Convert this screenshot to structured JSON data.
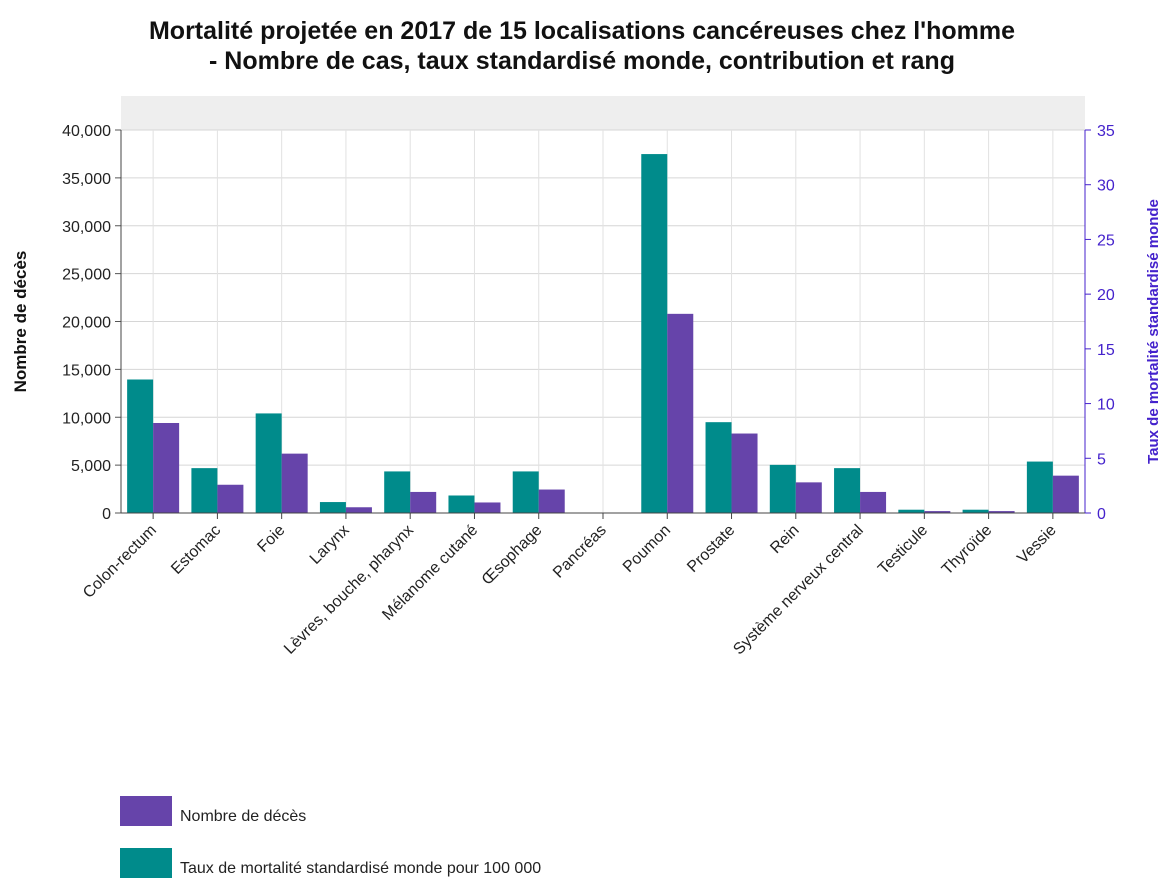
{
  "title_line1": "Mortalité projetée en 2017 de 15 localisations cancéreuses chez l'homme",
  "title_line2": "- Nombre de cas, taux standardisé monde, contribution et rang",
  "colors": {
    "deaths": "#6644AA",
    "rate": "#008B8B",
    "right_axis": "#4422CC"
  },
  "chart_data": {
    "type": "bar",
    "title": "Mortalité projetée en 2017 de 15 localisations cancéreuses chez l'homme - Nombre de cas, taux standardisé monde, contribution et rang",
    "categories": [
      "Colon-rectum",
      "Estomac",
      "Foie",
      "Larynx",
      "Lèvres, bouche, pharynx",
      "Mélanome cutané",
      "Œsophage",
      "Pancréas",
      "Poumon",
      "Prostate",
      "Rein",
      "Système nerveux central",
      "Testicule",
      "Thyroïde",
      "Vessie"
    ],
    "series": [
      {
        "name": "Taux de mortalité standardisé monde pour 100 000",
        "axis": "right",
        "values": [
          12.2,
          4.1,
          9.1,
          1.0,
          3.8,
          1.6,
          3.8,
          0,
          32.8,
          8.3,
          4.4,
          4.1,
          0.3,
          0.3,
          4.7
        ]
      },
      {
        "name": "Nombre de décès",
        "axis": "left",
        "values": [
          9400,
          2950,
          6200,
          600,
          2200,
          1100,
          2450,
          0,
          20800,
          8300,
          3200,
          2200,
          200,
          200,
          3900
        ]
      }
    ],
    "ylabel": "Nombre de décès",
    "ylabel_right": "Taux de mortalité standardisé monde",
    "ylim": [
      0,
      40000
    ],
    "ylim_right": [
      0,
      35
    ],
    "yticks": [
      "0",
      "5,000",
      "10,000",
      "15,000",
      "20,000",
      "25,000",
      "30,000",
      "35,000",
      "40,000"
    ],
    "yticks_right": [
      "0",
      "5",
      "10",
      "15",
      "20",
      "25",
      "30",
      "35"
    ],
    "grid": true,
    "legend_position": "bottom-left"
  }
}
